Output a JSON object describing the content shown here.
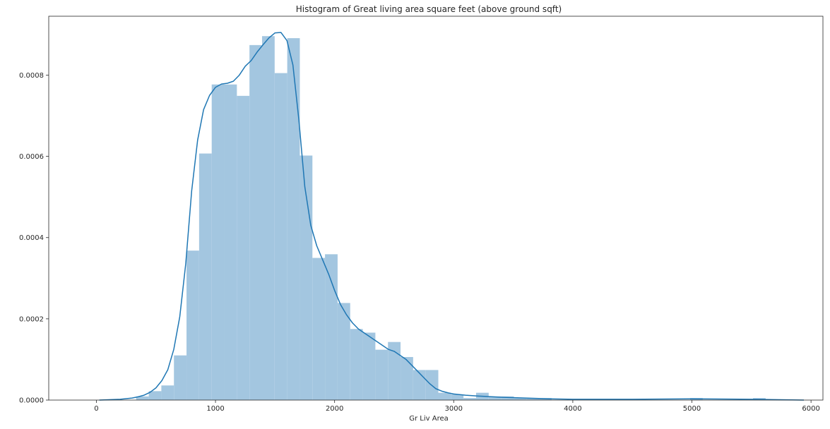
{
  "chart_data": {
    "type": "bar",
    "title": "Histogram of Great living area square feet (above ground sqft)",
    "xlabel": "Gr Liv Area",
    "ylabel": "",
    "xlim": [
      -400,
      6100
    ],
    "ylim": [
      0,
      0.000945
    ],
    "xticks": [
      0,
      1000,
      2000,
      3000,
      4000,
      5000,
      6000
    ],
    "xtick_labels": [
      "0",
      "1000",
      "2000",
      "3000",
      "4000",
      "5000",
      "6000"
    ],
    "yticks": [
      0,
      0.0002,
      0.0004,
      0.0006,
      0.0008
    ],
    "ytick_labels": [
      "0.0000",
      "0.0002",
      "0.0004",
      "0.0006",
      "0.0008"
    ],
    "grid": false,
    "legend": "none",
    "histogram": {
      "bin_edges": [
        334,
        439.7,
        545.4,
        651.1,
        756.8,
        862.5,
        968.2,
        1073.9,
        1179.6,
        1285.3,
        1391.0,
        1496.7,
        1602.4,
        1708.1,
        1813.8,
        1919.5,
        2025.2,
        2130.9,
        2236.6,
        2342.3,
        2448.0,
        2553.7,
        2659.4,
        2765.1,
        2870.8,
        2976.5,
        3082.2,
        3187.9,
        3293.6,
        3399.3,
        3505.0,
        3610.7,
        3716.4,
        3822.1,
        3927.8,
        4033.5,
        4139.2,
        4244.9,
        4350.6,
        4456.3,
        4562.0,
        4667.7,
        4773.4,
        4879.1,
        4984.8,
        5090.5,
        5196.2,
        5301.9,
        5407.6,
        5513.3,
        5619.0
      ],
      "densities": [
        9e-06,
        2.2e-05,
        3.6e-05,
        0.00011,
        0.000368,
        0.000607,
        0.000777,
        0.000777,
        0.000749,
        0.000874,
        0.000896,
        0.000805,
        0.000891,
        0.000602,
        0.00035,
        0.000359,
        0.000239,
        0.000175,
        0.000166,
        0.000124,
        0.000143,
        0.000106,
        7.4e-05,
        7.4e-05,
        1.8e-05,
        1.4e-05,
        5e-06,
        1.8e-05,
        9e-06,
        9e-06,
        5e-06,
        5e-06,
        5e-06,
        0.0,
        0.0,
        0.0,
        0.0,
        0.0,
        0.0,
        0.0,
        0.0,
        0.0,
        0.0,
        0.0,
        5e-06,
        0.0,
        0.0,
        0.0,
        0.0,
        5e-06
      ]
    },
    "kde": {
      "x": [
        25,
        200,
        300,
        350,
        400,
        450,
        500,
        550,
        600,
        650,
        700,
        750,
        800,
        850,
        900,
        950,
        1000,
        1050,
        1100,
        1150,
        1200,
        1250,
        1300,
        1350,
        1400,
        1450,
        1500,
        1550,
        1600,
        1650,
        1700,
        1750,
        1800,
        1850,
        1900,
        1950,
        2000,
        2050,
        2100,
        2150,
        2200,
        2250,
        2300,
        2350,
        2400,
        2450,
        2500,
        2550,
        2600,
        2650,
        2700,
        2750,
        2800,
        2850,
        2900,
        2950,
        3000,
        3100,
        3200,
        3400,
        3600,
        3800,
        4000,
        4500,
        5000,
        5500,
        5940
      ],
      "y": [
        0.0,
        2e-06,
        5e-06,
        8e-06,
        1.2e-05,
        1.9e-05,
        3e-05,
        4.8e-05,
        7.5e-05,
        0.000125,
        0.000205,
        0.000335,
        0.000515,
        0.00064,
        0.000715,
        0.00075,
        0.00077,
        0.000778,
        0.00078,
        0.000785,
        0.0008,
        0.000822,
        0.000836,
        0.000857,
        0.000875,
        0.000892,
        0.000904,
        0.000905,
        0.000885,
        0.000825,
        0.00069,
        0.000525,
        0.00043,
        0.00038,
        0.000345,
        0.00031,
        0.00027,
        0.000235,
        0.00021,
        0.00019,
        0.000175,
        0.000165,
        0.000155,
        0.000145,
        0.000135,
        0.000125,
        0.00012,
        0.00011,
        0.0001,
        8.5e-05,
        7e-05,
        5.5e-05,
        4e-05,
        2.8e-05,
        2.2e-05,
        1.8e-05,
        1.5e-05,
        1.2e-05,
        1e-05,
        7e-06,
        5e-06,
        3e-06,
        2e-06,
        2e-06,
        3e-06,
        2e-06,
        0.0
      ]
    },
    "colors": {
      "bar_fill": "#a3c6e0",
      "kde_line": "#1f77b4",
      "axis": "#262626"
    }
  }
}
